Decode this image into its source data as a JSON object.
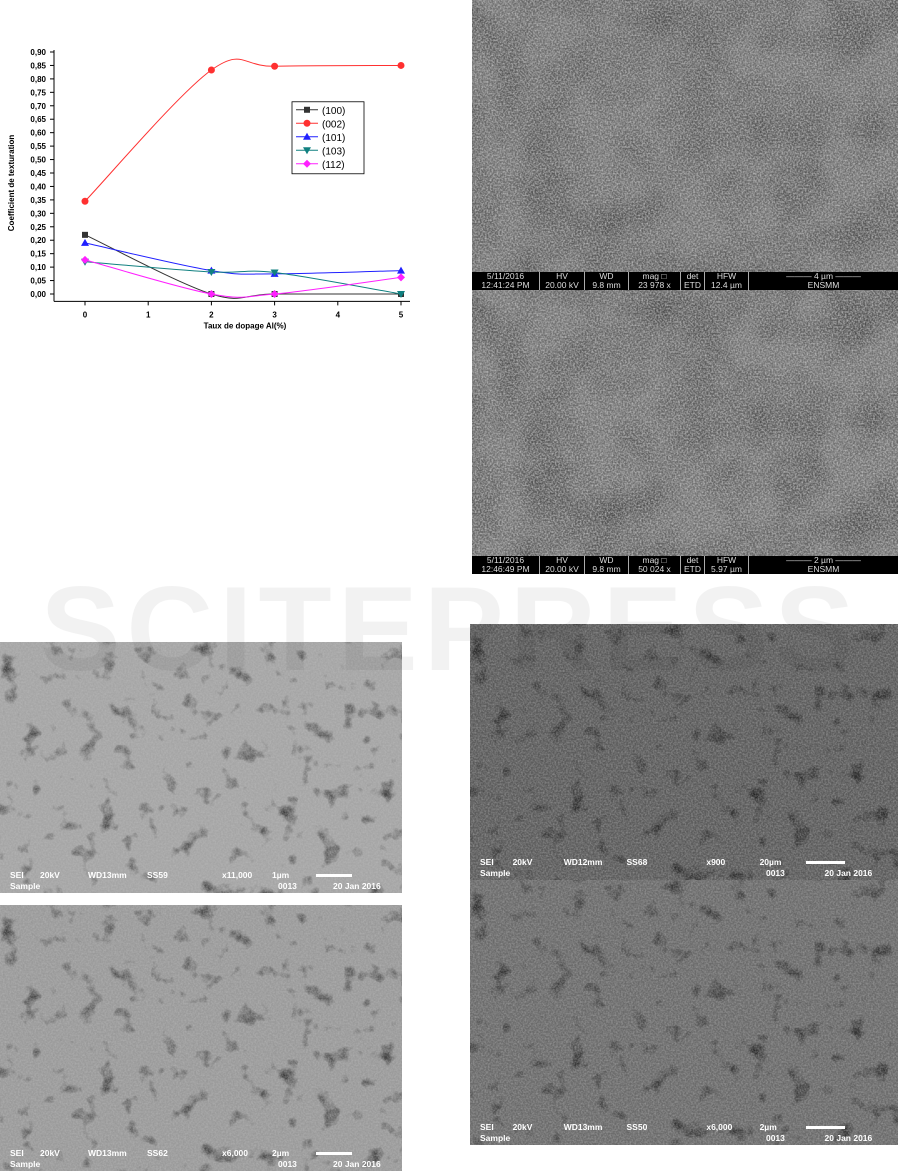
{
  "chart_data": {
    "type": "line",
    "xlabel": "Taux de dopage Al(%)",
    "ylabel": "Coefficient de texturation",
    "x": [
      0,
      2,
      3,
      5
    ],
    "xlim": [
      -0.5,
      5.1
    ],
    "ylim": [
      -0.02,
      0.9
    ],
    "xticks": [
      "0",
      "1",
      "2",
      "3",
      "4",
      "5"
    ],
    "yticks": [
      "0,00",
      "0,05",
      "0,10",
      "0,15",
      "0,20",
      "0,25",
      "0,30",
      "0,35",
      "0,40",
      "0,45",
      "0,50",
      "0,55",
      "0,60",
      "0,65",
      "0,70",
      "0,75",
      "0,80",
      "0,85",
      "0,90"
    ],
    "legend_position": "right",
    "series": [
      {
        "name": "(100)",
        "values": [
          0.22,
          0.0,
          0.0,
          0.0
        ],
        "color": "#333333",
        "marker": "square"
      },
      {
        "name": "(002)",
        "values": [
          0.345,
          0.833,
          0.847,
          0.85
        ],
        "color": "#ff3030",
        "marker": "circle"
      },
      {
        "name": "(101)",
        "values": [
          0.19,
          0.087,
          0.075,
          0.087
        ],
        "color": "#2020ff",
        "marker": "triangle-up"
      },
      {
        "name": "(103)",
        "values": [
          0.12,
          0.082,
          0.08,
          0.0
        ],
        "color": "#108080",
        "marker": "triangle-down"
      },
      {
        "name": "(112)",
        "values": [
          0.127,
          0.0,
          0.0,
          0.062
        ],
        "color": "#ff20ff",
        "marker": "diamond"
      }
    ]
  },
  "sem_fei": [
    {
      "date": "5/11/2016",
      "time": "12:41:24 PM",
      "hv_label": "HV",
      "hv": "20.00 kV",
      "wd_label": "WD",
      "wd": "9.8 mm",
      "mag_label": "mag □",
      "mag": "23 978 x",
      "det_label": "det",
      "det": "ETD",
      "hfw_label": "HFW",
      "hfw": "12.4 µm",
      "scale": "4 µm",
      "lab": "ENSMM"
    },
    {
      "date": "5/11/2016",
      "time": "12:46:49 PM",
      "hv_label": "HV",
      "hv": "20.00 kV",
      "wd_label": "WD",
      "wd": "9.8 mm",
      "mag_label": "mag □",
      "mag": "50 024 x",
      "det_label": "det",
      "det": "ETD",
      "hfw_label": "HFW",
      "hfw": "5.97 µm",
      "scale": "2 µm",
      "lab": "ENSMM"
    }
  ],
  "sem_jeol": [
    {
      "mode": "SEI",
      "kv": "20kV",
      "wd": "WD13mm",
      "ss": "SS59",
      "mag": "x11,000",
      "scale": "1µm",
      "sample": "Sample",
      "num": "0013",
      "date": "20 Jan 2016"
    },
    {
      "mode": "SEI",
      "kv": "20kV",
      "wd": "WD13mm",
      "ss": "SS62",
      "mag": "x6,000",
      "scale": "2µm",
      "sample": "Sample",
      "num": "0013",
      "date": "20 Jan 2016"
    },
    {
      "mode": "SEI",
      "kv": "20kV",
      "wd": "WD12mm",
      "ss": "SS68",
      "mag": "x900",
      "scale": "20µm",
      "sample": "Sample",
      "num": "0013",
      "date": "20 Jan 2016"
    },
    {
      "mode": "SEI",
      "kv": "20kV",
      "wd": "WD13mm",
      "ss": "SS50",
      "mag": "x6,000",
      "scale": "2µm",
      "sample": "Sample",
      "num": "0013",
      "date": "20 Jan 2016"
    }
  ],
  "watermark": "SCITEPRESS"
}
